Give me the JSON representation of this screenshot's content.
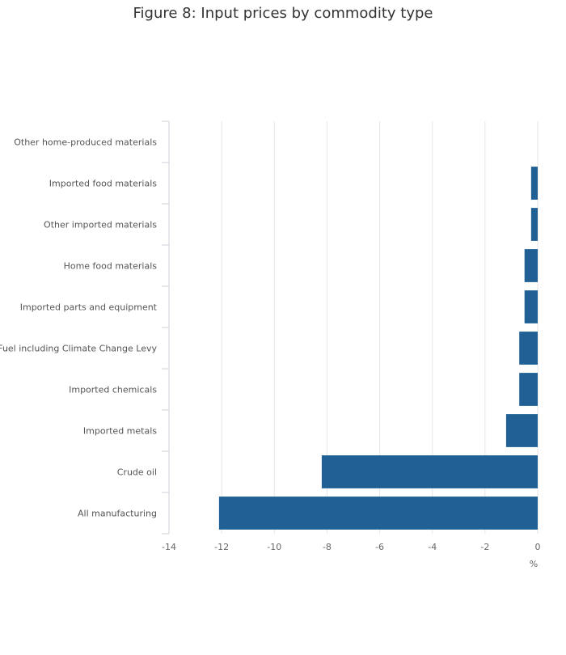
{
  "chart_data": {
    "type": "bar",
    "orientation": "horizontal",
    "title": "Figure 8: Input prices by commodity type",
    "xlabel": "%",
    "ylabel": "",
    "xlim": [
      -14,
      0
    ],
    "x_ticks": [
      -14,
      -12,
      -10,
      -8,
      -6,
      -4,
      -2,
      0
    ],
    "grid": true,
    "categories": [
      "Other home-produced materials",
      "Imported food materials",
      "Other imported materials",
      "Home food materials",
      "Imported parts and equipment",
      "Fuel including Climate Change Levy",
      "Imported chemicals",
      "Imported metals",
      "Crude oil",
      "All manufacturing"
    ],
    "values": [
      0.0,
      -0.25,
      -0.25,
      -0.5,
      -0.5,
      -0.7,
      -0.7,
      -1.2,
      -8.2,
      -12.1
    ],
    "bar_color": "#206095"
  }
}
